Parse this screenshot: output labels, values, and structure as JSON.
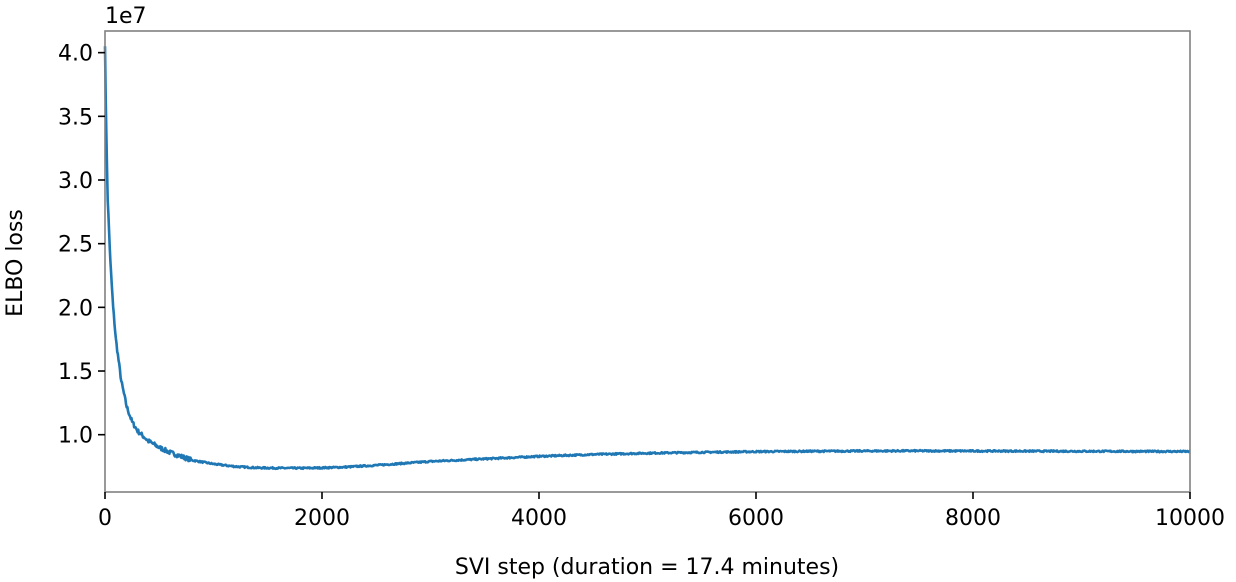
{
  "chart_data": {
    "type": "line",
    "xlabel": "SVI step (duration = 17.4 minutes)",
    "ylabel": "ELBO loss",
    "y_offset_label": "1e7",
    "y_scale_factor": 10000000,
    "xlim": [
      0,
      10000
    ],
    "ylim": [
      0.55,
      4.17
    ],
    "x_ticks": [
      0,
      2000,
      4000,
      6000,
      8000,
      10000
    ],
    "x_tick_labels": [
      "0",
      "2000",
      "4000",
      "6000",
      "8000",
      "10000"
    ],
    "y_ticks": [
      1.0,
      1.5,
      2.0,
      2.5,
      3.0,
      3.5,
      4.0
    ],
    "y_tick_labels": [
      "1.0",
      "1.5",
      "2.0",
      "2.5",
      "3.0",
      "3.5",
      "4.0"
    ],
    "grid": false,
    "legend": "none",
    "colors": {
      "line": "#1f77b4",
      "spine": "#808080"
    },
    "series": [
      {
        "x": [
          0,
          10,
          25,
          50,
          75,
          100,
          150,
          200,
          250,
          300,
          400,
          500,
          600,
          700,
          800,
          1000,
          1200,
          1400,
          1600,
          1800,
          2000,
          2200,
          2500,
          3000,
          3500,
          4000,
          4500,
          5000,
          5500,
          6000,
          6500,
          7000,
          7500,
          8000,
          8500,
          9000,
          9500,
          10000
        ],
        "values": [
          4.05,
          3.45,
          2.85,
          2.35,
          2.0,
          1.75,
          1.42,
          1.22,
          1.1,
          1.03,
          0.95,
          0.9,
          0.86,
          0.83,
          0.8,
          0.77,
          0.75,
          0.74,
          0.738,
          0.737,
          0.74,
          0.745,
          0.76,
          0.79,
          0.81,
          0.83,
          0.845,
          0.855,
          0.862,
          0.867,
          0.87,
          0.872,
          0.873,
          0.872,
          0.871,
          0.87,
          0.869,
          0.868
        ]
      }
    ]
  }
}
